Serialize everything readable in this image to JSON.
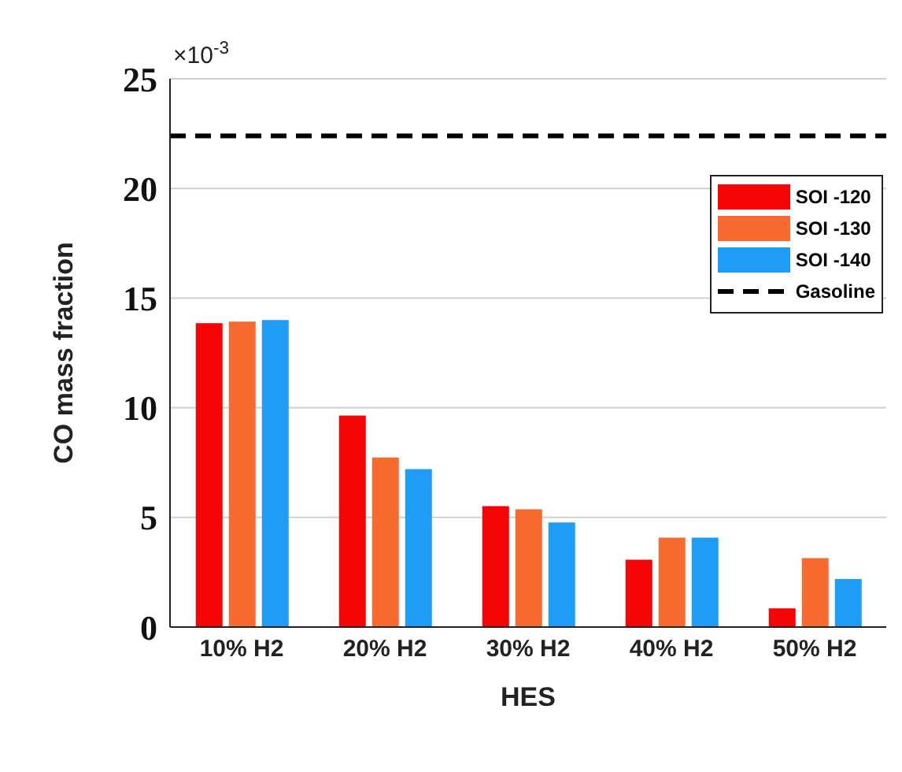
{
  "chart_data": {
    "type": "bar",
    "xlabel": "HES",
    "ylabel": "CO mass fraction",
    "annotations": [
      "×10$^{-3}$"
    ],
    "categories": [
      "10% H2",
      "20% H2",
      "30% H2",
      "40% H2",
      "50% H2"
    ],
    "series": [
      {
        "name": "SOI -120",
        "color": "#f50505",
        "values": [
          13.86,
          9.64,
          5.51,
          3.07,
          0.85
        ]
      },
      {
        "name": "SOI -130",
        "color": "#f76b30",
        "values": [
          13.93,
          7.73,
          5.37,
          4.08,
          3.14
        ]
      },
      {
        "name": "SOI -140",
        "color": "#1f9cf5",
        "values": [
          14.0,
          7.2,
          4.77,
          4.08,
          2.19
        ]
      }
    ],
    "ref_lines": [
      {
        "axis": "y",
        "value": 22.4,
        "label": "Gasoline",
        "color": "#000000",
        "line_style": "dashed"
      }
    ],
    "ylim": [
      0,
      25
    ],
    "yticks": [
      0,
      5,
      10,
      15,
      20,
      25
    ],
    "grid": "y",
    "legend": "top right"
  }
}
